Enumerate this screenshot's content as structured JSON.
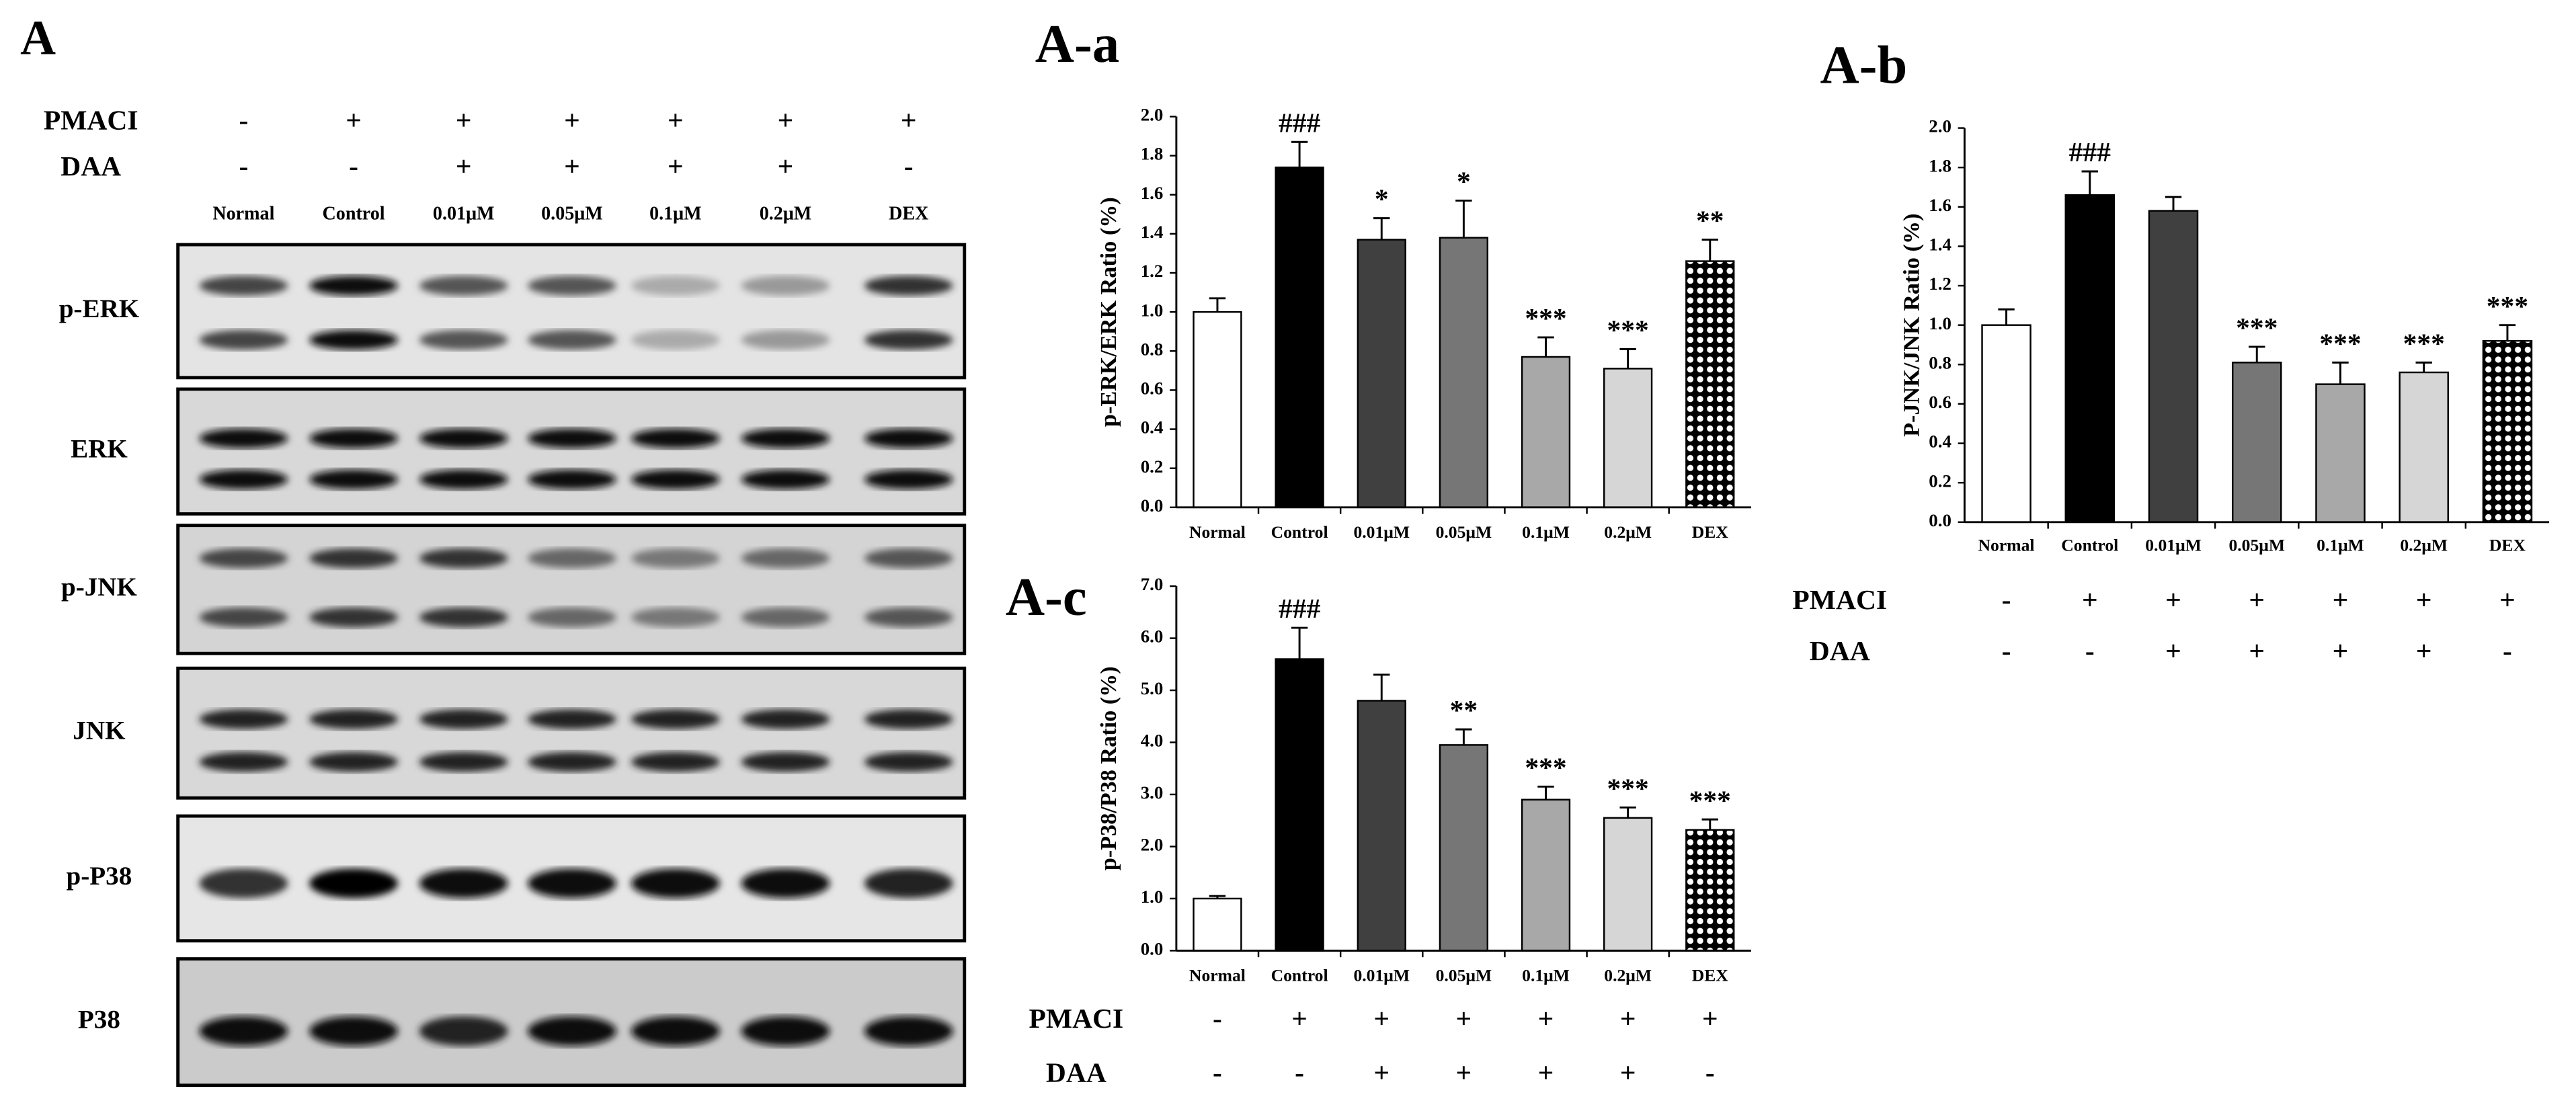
{
  "panel_label": "A",
  "blot": {
    "treatments": [
      {
        "name": "PMACI",
        "signs": [
          "-",
          "+",
          "+",
          "+",
          "+",
          "+",
          "+"
        ]
      },
      {
        "name": "DAA",
        "signs": [
          "-",
          "-",
          "+",
          "+",
          "+",
          "+",
          "-"
        ]
      }
    ],
    "lanes": [
      "Normal",
      "Control",
      "0.01μM",
      "0.05μM",
      "0.1μM",
      "0.2μM",
      "DEX"
    ],
    "proteins": [
      "p-ERK",
      "ERK",
      "p-JNK",
      "JNK",
      "p-P38",
      "P38"
    ]
  },
  "chart_data": [
    {
      "type": "bar",
      "title": "A-a",
      "y_label": "p-ERK/ERK Ratio (%)",
      "categories": [
        "Normal",
        "Control",
        "0.01μM",
        "0.05μM",
        "0.1μM",
        "0.2μM",
        "DEX"
      ],
      "values": [
        1.0,
        1.74,
        1.37,
        1.38,
        0.77,
        0.71,
        1.26
      ],
      "errors": [
        0.07,
        0.13,
        0.11,
        0.19,
        0.1,
        0.1,
        0.11
      ],
      "annotations": [
        null,
        "###",
        "*",
        "*",
        "***",
        "***",
        "**"
      ],
      "colors": [
        "#ffffff",
        "#000000",
        "#404040",
        "#767676",
        "#a8a8a8",
        "#d6d6d6",
        "#000000"
      ],
      "patterned": [
        false,
        false,
        false,
        false,
        false,
        false,
        true
      ],
      "ylim": [
        0,
        2
      ],
      "yticks": [
        {
          "value": 0,
          "label": "0.0"
        },
        0.2,
        0.4,
        0.6,
        0.8,
        {
          "value": 1,
          "label": "1.0"
        },
        1.2,
        1.4,
        1.6,
        1.8,
        {
          "value": 2,
          "label": "2.0"
        }
      ],
      "grid": false
    },
    {
      "type": "bar",
      "title": "A-b",
      "y_label": "P-JNK/JNK Ratio (%)",
      "categories": [
        "Normal",
        "Control",
        "0.01μM",
        "0.05μM",
        "0.1μM",
        "0.2μM",
        "DEX"
      ],
      "values": [
        1.0,
        1.66,
        1.58,
        0.81,
        0.7,
        0.76,
        0.92
      ],
      "errors": [
        0.08,
        0.12,
        0.07,
        0.08,
        0.11,
        0.05,
        0.08
      ],
      "annotations": [
        null,
        "###",
        null,
        "***",
        "***",
        "***",
        "***"
      ],
      "colors": [
        "#ffffff",
        "#000000",
        "#404040",
        "#767676",
        "#a8a8a8",
        "#d6d6d6",
        "#000000"
      ],
      "patterned": [
        false,
        false,
        false,
        false,
        false,
        false,
        true
      ],
      "ylim": [
        0,
        2
      ],
      "yticks": [
        {
          "value": 0,
          "label": "0.0"
        },
        0.2,
        0.4,
        0.6,
        0.8,
        {
          "value": 1,
          "label": "1.0"
        },
        1.2,
        1.4,
        1.6,
        1.8,
        {
          "value": 2,
          "label": "2.0"
        }
      ],
      "grid": false,
      "treatments": [
        {
          "name": "PMACI",
          "signs": [
            "-",
            "+",
            "+",
            "+",
            "+",
            "+",
            "+"
          ]
        },
        {
          "name": "DAA",
          "signs": [
            "-",
            "-",
            "+",
            "+",
            "+",
            "+",
            "-"
          ]
        }
      ]
    },
    {
      "type": "bar",
      "title": "A-c",
      "y_label": "p-P38/P38 Ratio (%)",
      "categories": [
        "Normal",
        "Control",
        "0.01μM",
        "0.05μM",
        "0.1μM",
        "0.2μM",
        "DEX"
      ],
      "values": [
        1.0,
        5.6,
        4.8,
        3.95,
        2.9,
        2.55,
        2.32
      ],
      "errors": [
        0.05,
        0.6,
        0.5,
        0.3,
        0.25,
        0.2,
        0.2
      ],
      "annotations": [
        null,
        "###",
        null,
        "**",
        "***",
        "***",
        "***"
      ],
      "colors": [
        "#ffffff",
        "#000000",
        "#404040",
        "#767676",
        "#a8a8a8",
        "#d6d6d6",
        "#000000"
      ],
      "patterned": [
        false,
        false,
        false,
        false,
        false,
        false,
        true
      ],
      "ylim": [
        0,
        7
      ],
      "yticks": [
        {
          "value": 0,
          "label": "0.0"
        },
        {
          "value": 1,
          "label": "1.0"
        },
        {
          "value": 2,
          "label": "2.0"
        },
        {
          "value": 3,
          "label": "3.0"
        },
        {
          "value": 4,
          "label": "4.0"
        },
        {
          "value": 5,
          "label": "5.0"
        },
        {
          "value": 6,
          "label": "6.0"
        },
        {
          "value": 7,
          "label": "7.0"
        }
      ],
      "grid": false,
      "treatments": [
        {
          "name": "PMACI",
          "signs": [
            "-",
            "+",
            "+",
            "+",
            "+",
            "+",
            "+"
          ]
        },
        {
          "name": "DAA",
          "signs": [
            "-",
            "-",
            "+",
            "+",
            "+",
            "+",
            "-"
          ]
        }
      ]
    }
  ]
}
